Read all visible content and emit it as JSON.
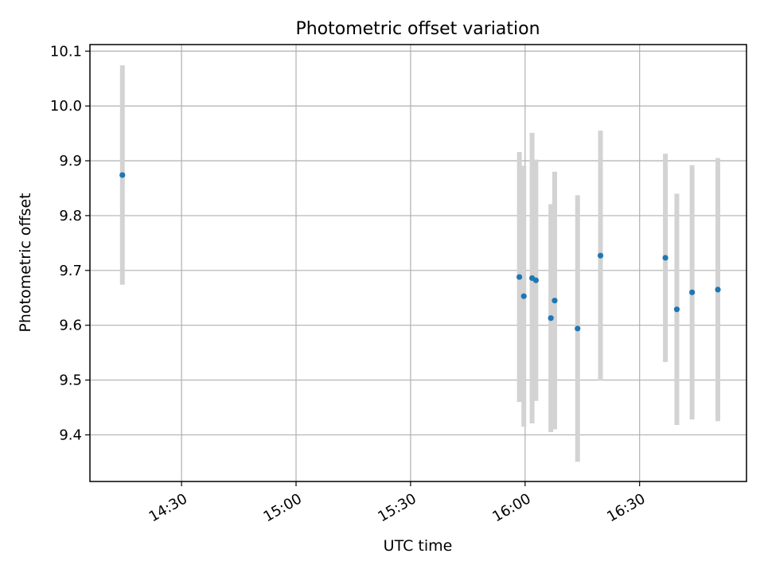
{
  "chart_data": {
    "type": "scatter",
    "title": "Photometric offset variation",
    "xlabel": "UTC time",
    "ylabel": "Photometric offset",
    "x_ticks": [
      "14:30",
      "15:00",
      "15:30",
      "16:00",
      "16:30"
    ],
    "y_ticks": [
      "9.4",
      "9.5",
      "9.6",
      "9.7",
      "9.8",
      "9.9",
      "10.0",
      "10.1"
    ],
    "xlim": [
      "14:06",
      "16:58"
    ],
    "ylim": [
      9.315,
      10.112
    ],
    "grid": true,
    "marker_color": "#1f77b4",
    "errorbar_color": "#d3d3d3",
    "series": [
      {
        "points": [
          {
            "x": "14:14:30",
            "y": 9.874,
            "yerr": 0.2
          },
          {
            "x": "15:58:30",
            "y": 9.688,
            "yerr": 0.228
          },
          {
            "x": "15:59:40",
            "y": 9.653,
            "yerr": 0.238
          },
          {
            "x": "16:01:50",
            "y": 9.686,
            "yerr": 0.265
          },
          {
            "x": "16:02:50",
            "y": 9.682,
            "yerr": 0.22
          },
          {
            "x": "16:06:45",
            "y": 9.613,
            "yerr": 0.208
          },
          {
            "x": "16:07:45",
            "y": 9.645,
            "yerr": 0.235
          },
          {
            "x": "16:13:45",
            "y": 9.594,
            "yerr": 0.243
          },
          {
            "x": "16:19:45",
            "y": 9.727,
            "yerr": 0.228
          },
          {
            "x": "16:36:45",
            "y": 9.723,
            "yerr": 0.19
          },
          {
            "x": "16:39:45",
            "y": 9.629,
            "yerr": 0.211
          },
          {
            "x": "16:43:45",
            "y": 9.66,
            "yerr": 0.232
          },
          {
            "x": "16:50:30",
            "y": 9.665,
            "yerr": 0.24
          }
        ]
      }
    ]
  }
}
